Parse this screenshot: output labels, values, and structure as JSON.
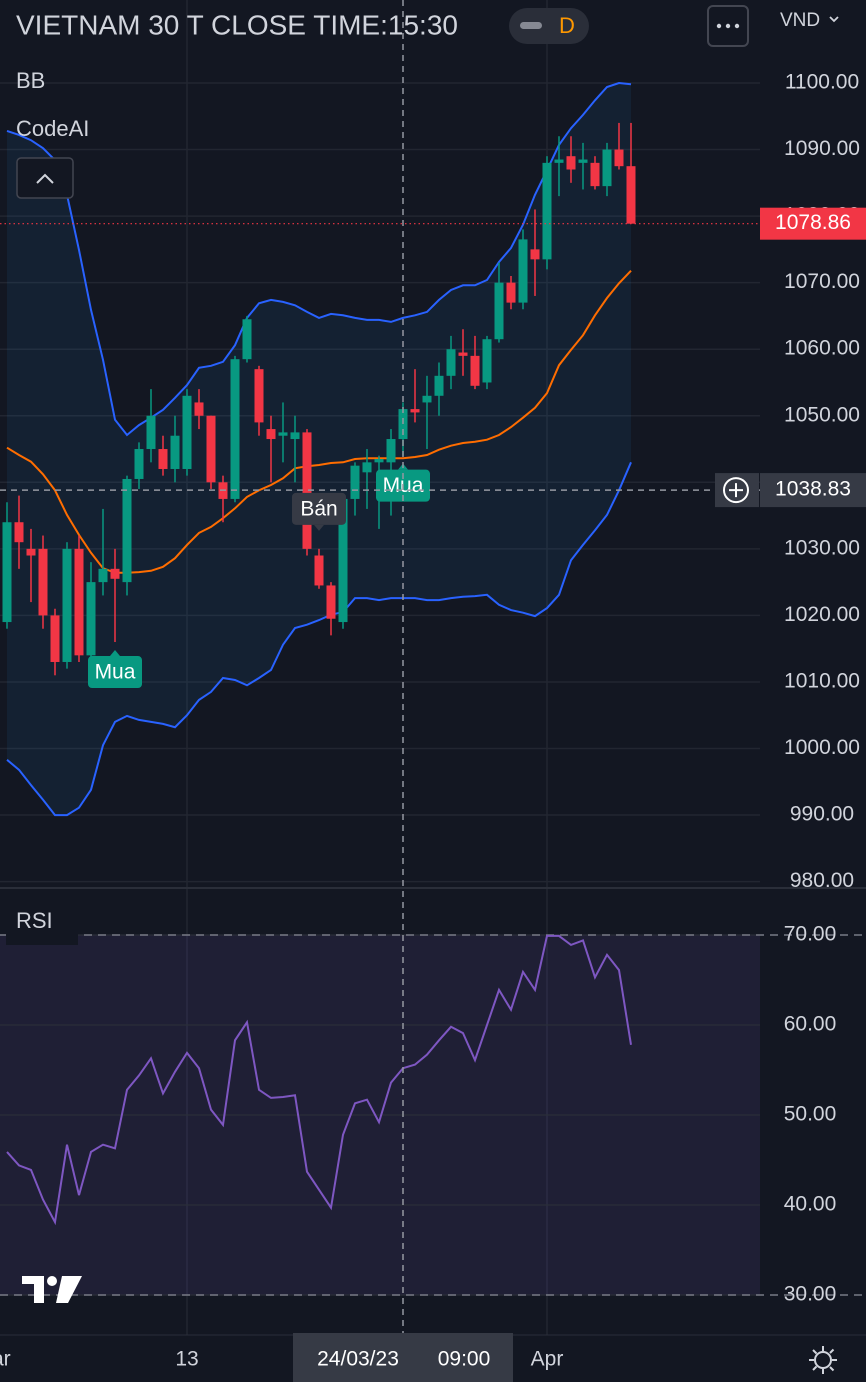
{
  "chart_data": [
    {
      "type": "candlestick",
      "title": "VIETNAM 30 T CLOSE TIME:15:30",
      "interval": "D",
      "currency": "VND",
      "indicators": [
        "BB",
        "CodeAI"
      ],
      "categories": [
        null,
        null,
        null,
        null,
        null,
        null,
        null,
        null,
        null,
        null,
        null,
        null,
        null,
        null,
        null,
        "13",
        null,
        null,
        null,
        null,
        null,
        null,
        null,
        null,
        null,
        null,
        null,
        null,
        null,
        null,
        null,
        null,
        null,
        null,
        null,
        null,
        null,
        null,
        null,
        null,
        null,
        null,
        null,
        null,
        null,
        "Apr",
        null,
        null,
        null,
        null,
        null,
        null,
        null
      ],
      "x_partial_label": "ar",
      "open": [
        1019,
        1034,
        1030,
        1030,
        1020,
        1013,
        1030,
        1014,
        1025,
        1027,
        1025,
        1040.5,
        1045,
        1045,
        1042,
        1042,
        1052,
        1050,
        1040,
        1037.5,
        1058.5,
        1057,
        1048,
        1047,
        1046.5,
        1047.5,
        1029,
        1024.5,
        1019,
        1037.5,
        1041.5,
        1043,
        1043,
        1046.5,
        1051,
        1052,
        1053,
        1056,
        1059.5,
        1059,
        1055,
        1061.5,
        1070,
        1067,
        1075,
        1073.5,
        1088,
        1089,
        1088,
        1088,
        1084.5,
        1090,
        1087.5
      ],
      "high": [
        1037,
        1038,
        1033,
        1032,
        1021,
        1031,
        1032,
        1028,
        1036,
        1030,
        1041,
        1046,
        1054,
        1047,
        1050,
        1054,
        1054,
        1050,
        1041,
        1059,
        1065,
        1057.5,
        1050,
        1052,
        1050,
        1048,
        1030,
        1025,
        1038,
        1043,
        1045,
        1044,
        1048,
        1052,
        1057,
        1056,
        1058,
        1062,
        1063,
        1062,
        1062,
        1073,
        1071,
        1078,
        1081,
        1089,
        1092,
        1092,
        1091,
        1089,
        1091,
        1094,
        1094
      ],
      "low": [
        1018,
        1027,
        1022,
        1018,
        1011,
        1012,
        1013,
        1013,
        1023,
        1016,
        1023,
        1039,
        1043,
        1041,
        1040,
        1041,
        1048,
        1039,
        1034,
        1037,
        1058,
        1047,
        1040,
        1043,
        1040,
        1029,
        1024,
        1017,
        1018,
        1035,
        1036,
        1033,
        1035,
        1044,
        1049,
        1045,
        1050,
        1054,
        1056,
        1054,
        1054,
        1061,
        1066,
        1066,
        1068,
        1072,
        1083,
        1085,
        1084,
        1084,
        1083,
        1087,
        1078.86
      ],
      "close": [
        1034,
        1031,
        1029,
        1020,
        1013,
        1030,
        1014,
        1025,
        1027,
        1025.5,
        1040.5,
        1045,
        1050,
        1042,
        1047,
        1053,
        1050,
        1040,
        1037.5,
        1058.5,
        1064.5,
        1049,
        1046.5,
        1047.5,
        1047.5,
        1030,
        1024.5,
        1019.5,
        1037.5,
        1042.5,
        1043,
        1043.5,
        1046.5,
        1051,
        1050.5,
        1053,
        1056,
        1060,
        1059,
        1054.5,
        1061.5,
        1070,
        1067,
        1076.5,
        1073.5,
        1088,
        1088.5,
        1087,
        1088.5,
        1084.5,
        1090,
        1087.5,
        1078.86
      ],
      "up_color": "#089981",
      "down_color": "#f23645",
      "bb": {
        "upper": [
          1092.8,
          1092.2,
          1091.4,
          1090.2,
          1088.4,
          1083.2,
          1074.9,
          1065.9,
          1058.4,
          1049.4,
          1047.1,
          1048.6,
          1049.7,
          1050.9,
          1052.7,
          1054.6,
          1057.2,
          1057.5,
          1058.1,
          1060.6,
          1064.7,
          1066.9,
          1067.4,
          1067.1,
          1066.6,
          1065.6,
          1064.7,
          1065.3,
          1065.1,
          1064.7,
          1064.4,
          1064.4,
          1064.1,
          1064.7,
          1065.1,
          1065.6,
          1067.4,
          1068.9,
          1069.6,
          1069.6,
          1070.4,
          1073.1,
          1075.2,
          1078.7,
          1083.2,
          1086.9,
          1090.7,
          1093.2,
          1095.2,
          1097.4,
          1099.4,
          1100,
          1099.8
        ],
        "basis": [
          1045.2,
          1044.1,
          1043.1,
          1041.2,
          1038.8,
          1035.1,
          1032.1,
          1029.4,
          1027.1,
          1026.4,
          1026.4,
          1026.5,
          1026.7,
          1027.3,
          1028.6,
          1030.6,
          1032.4,
          1033.3,
          1034.6,
          1036.1,
          1037.8,
          1038.8,
          1039.6,
          1040.6,
          1042.1,
          1042.4,
          1042.6,
          1042.9,
          1043,
          1043.5,
          1043.6,
          1043.6,
          1043.6,
          1043.6,
          1043.8,
          1044.1,
          1044.9,
          1045.5,
          1045.9,
          1046.1,
          1046.4,
          1047.1,
          1048.3,
          1049.7,
          1051.2,
          1053.4,
          1057.6,
          1059.9,
          1062.1,
          1065.1,
          1067.7,
          1069.9,
          1071.8
        ],
        "lower": [
          998.3,
          996.8,
          994.5,
          992.3,
          990,
          990,
          991.1,
          993.8,
          1000.5,
          1004,
          1004.9,
          1004.3,
          1004,
          1003.7,
          1003.2,
          1005,
          1007.3,
          1008.5,
          1010.6,
          1010.3,
          1009.5,
          1010.6,
          1011.8,
          1015.6,
          1018.1,
          1018.6,
          1019.3,
          1020.1,
          1020.5,
          1022.6,
          1022.6,
          1022.3,
          1022.6,
          1022.6,
          1022.6,
          1022.3,
          1022.3,
          1022.6,
          1022.8,
          1022.9,
          1023.1,
          1021.6,
          1020.8,
          1020.4,
          1019.9,
          1021.1,
          1023.1,
          1028.3,
          1030.6,
          1032.8,
          1035.1,
          1038.8,
          1043
        ],
        "band_color": "#2962ff",
        "basis_color": "#ff6d00",
        "fill": "rgba(33,150,243,0.08)"
      },
      "ylim": [
        979.04,
        1112.47
      ],
      "yticks": [
        {
          "value": 1100,
          "label": "1100.00"
        },
        {
          "value": 1090,
          "label": "1090.00"
        },
        {
          "value": 1080,
          "label": "1080.00"
        },
        {
          "value": 1070,
          "label": "1070.00"
        },
        {
          "value": 1060,
          "label": "1060.00"
        },
        {
          "value": 1050,
          "label": "1050.00"
        },
        {
          "value": 1040,
          "label": "1040.00"
        },
        {
          "value": 1030,
          "label": "1030.00"
        },
        {
          "value": 1020,
          "label": "1020.00"
        },
        {
          "value": 1010,
          "label": "1010.00"
        },
        {
          "value": 1000,
          "label": "1000.00"
        },
        {
          "value": 990,
          "label": "990.00"
        },
        {
          "value": 980,
          "label": "980.00"
        }
      ],
      "grid": true,
      "last_price": 1078.86,
      "signals": [
        {
          "label": "Mua",
          "index": 9,
          "side": "below"
        },
        {
          "label": "Bán",
          "index": 26,
          "side": "above"
        },
        {
          "label": "Mua",
          "index": 33,
          "side": "below"
        }
      ],
      "crosshair": {
        "index": 33,
        "price": 1038.83,
        "date": "24/03/23",
        "time": "09:00"
      }
    },
    {
      "type": "line",
      "title": "RSI",
      "values": [
        45.9,
        44.4,
        43.9,
        40.6,
        38.1,
        46.7,
        41.1,
        45.9,
        46.7,
        46.3,
        52.8,
        54.4,
        56.3,
        52.4,
        54.8,
        56.9,
        55.2,
        50.6,
        48.9,
        58.3,
        60.3,
        52.8,
        51.9,
        52,
        52.2,
        43.7,
        41.7,
        39.7,
        47.8,
        51.3,
        51.7,
        49.2,
        53.6,
        55.2,
        55.6,
        56.7,
        58.3,
        59.8,
        59.1,
        56.1,
        60,
        63.9,
        61.7,
        65.9,
        63.9,
        69.9,
        69.9,
        68.9,
        69.4,
        65.3,
        67.8,
        66.1,
        57.8
      ],
      "color": "#7e57c2",
      "levels": [
        70,
        30
      ],
      "ylim": [
        25.56,
        75
      ],
      "yticks": [
        {
          "value": 70,
          "label": "70.00"
        },
        {
          "value": 60,
          "label": "60.00"
        },
        {
          "value": 50,
          "label": "50.00"
        },
        {
          "value": 40,
          "label": "40.00"
        },
        {
          "value": 30,
          "label": "30.00"
        }
      ]
    }
  ]
}
